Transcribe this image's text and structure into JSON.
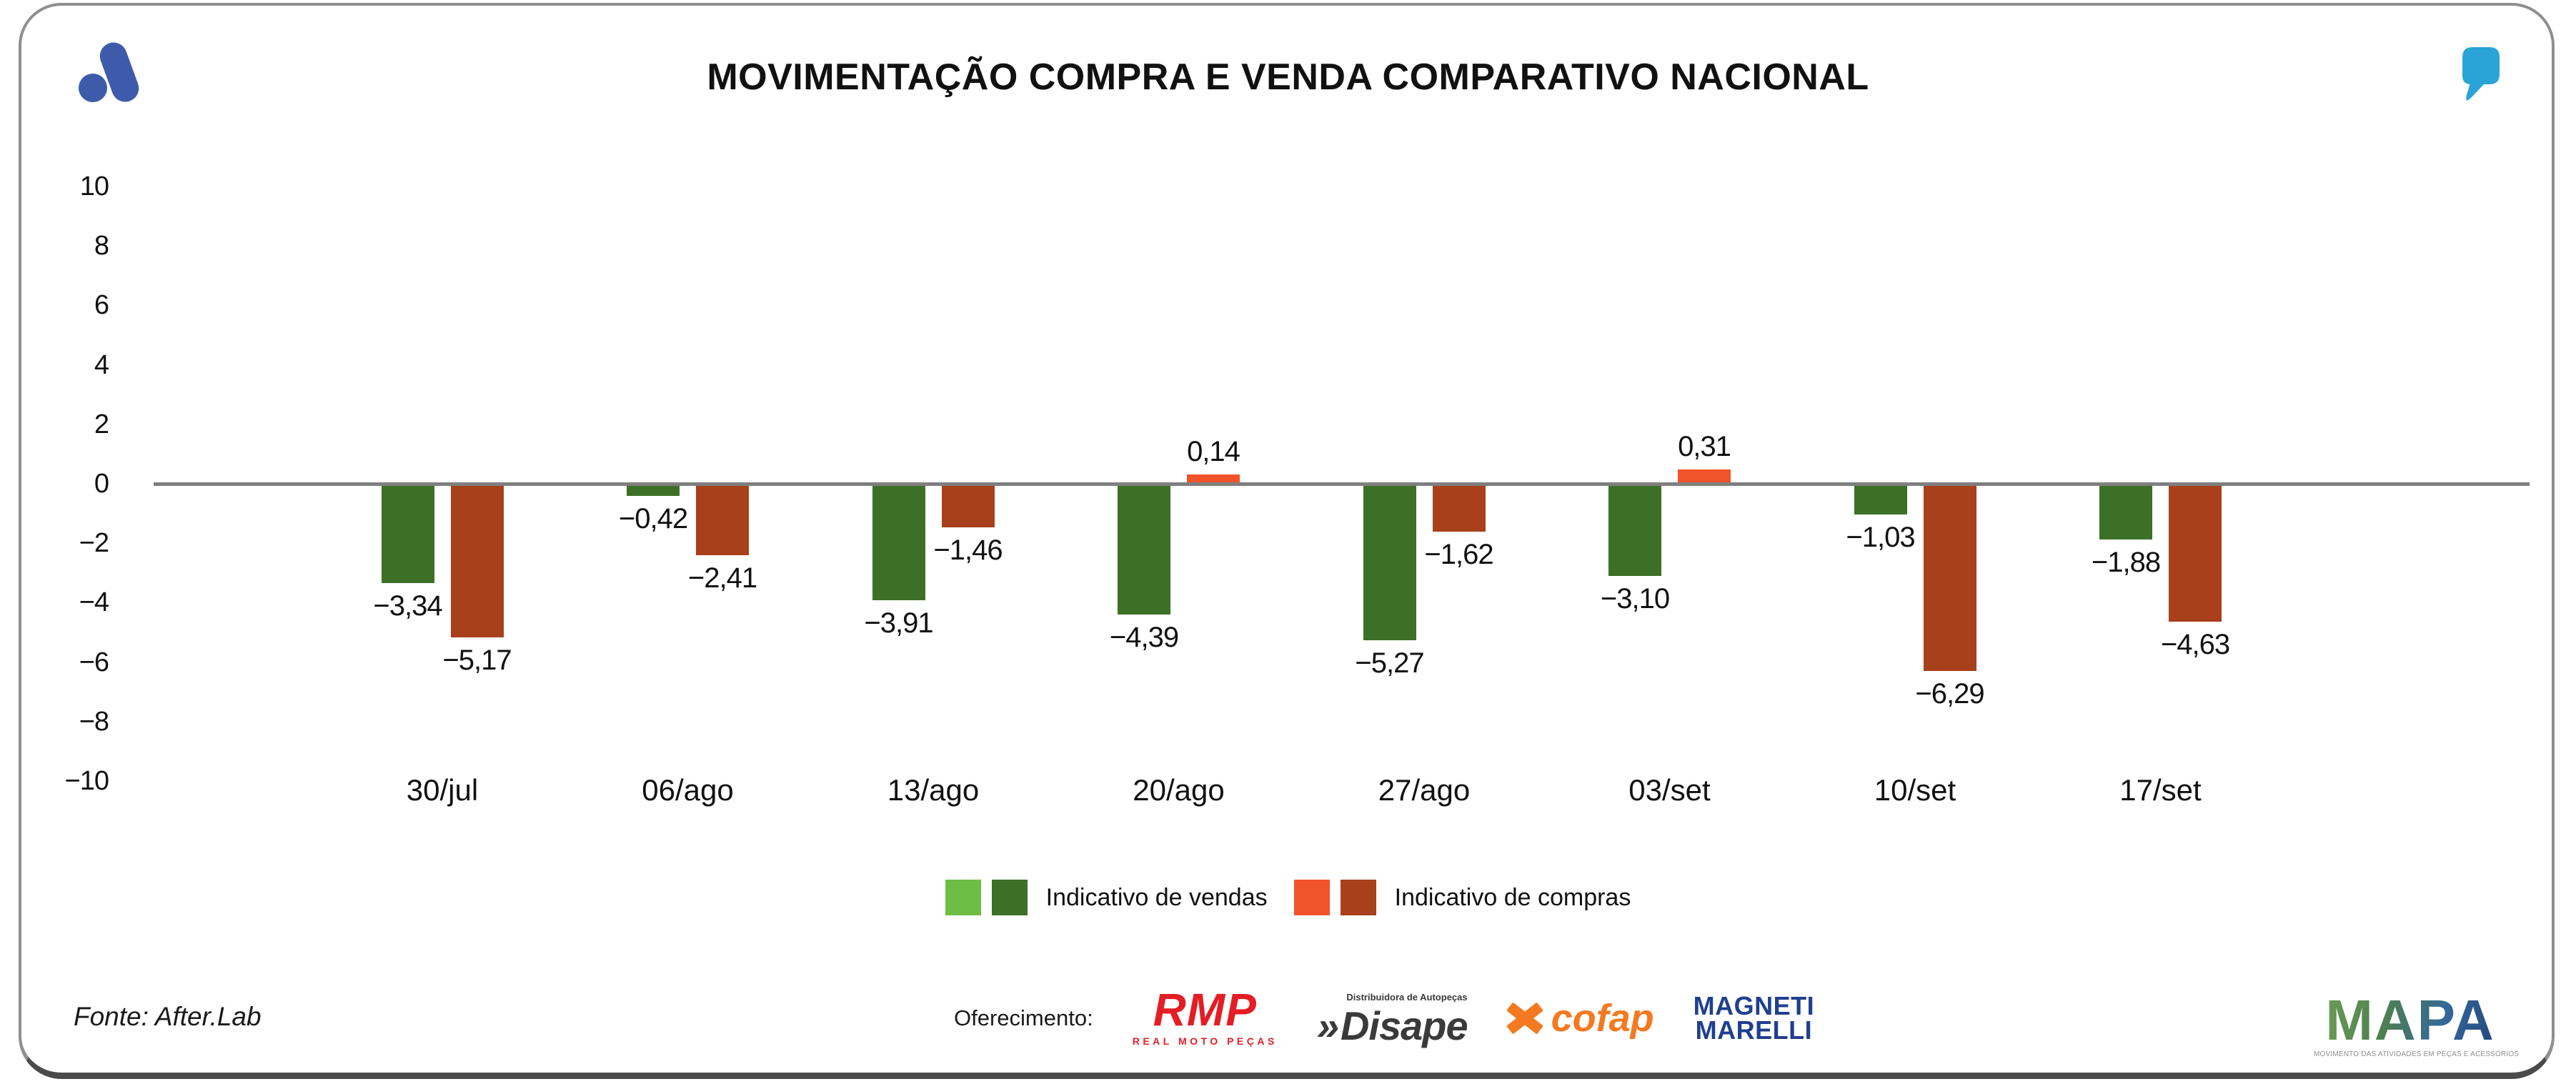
{
  "chart_data": {
    "type": "bar",
    "title": "MOVIMENTAÇÃO COMPRA E VENDA COMPARATIVO NACIONAL",
    "categories": [
      "30/jul",
      "06/ago",
      "13/ago",
      "20/ago",
      "27/ago",
      "03/set",
      "10/set",
      "17/set"
    ],
    "series": [
      {
        "name": "Indicativo de vendas",
        "values": [
          -3.34,
          -0.42,
          -3.91,
          -4.39,
          -5.27,
          -3.1,
          -1.03,
          -1.88
        ],
        "value_labels": [
          "−3,34",
          "−0,42",
          "−3,91",
          "−4,39",
          "−5,27",
          "−3,10",
          "−1,03",
          "−1,88"
        ],
        "color_positive": "#6CBE45",
        "color_negative": "#3C7026"
      },
      {
        "name": "Indicativo de compras",
        "values": [
          -5.17,
          -2.41,
          -1.46,
          0.14,
          -1.62,
          0.31,
          -6.29,
          -4.63
        ],
        "value_labels": [
          "−5,17",
          "−2,41",
          "−1,46",
          "0,14",
          "−1,62",
          "0,31",
          "−6,29",
          "−4,63"
        ],
        "color_positive": "#F1532B",
        "color_negative": "#A8401B"
      }
    ],
    "ylim": [
      -10,
      10
    ],
    "yticks": [
      10,
      8,
      6,
      4,
      2,
      0,
      -2,
      -4,
      -6,
      -8,
      -10
    ],
    "ytick_labels": [
      "10",
      "8",
      "6",
      "4",
      "2",
      "0",
      "−2",
      "−4",
      "−6",
      "−8",
      "−10"
    ],
    "grid": false,
    "legend_position": "bottom",
    "zero_line_color": "#7F7F7F"
  },
  "branding": {
    "afterlab_color": "#3D5BAA",
    "quote_color": "#2AA4D6"
  },
  "footer": {
    "fonte": "Fonte: After.Lab",
    "oferecimento_label": "Oferecimento:",
    "sponsors": {
      "rmp": {
        "name": "RMP",
        "sub": "REAL MOTO PEÇAS",
        "color": "#E31E24"
      },
      "disape": {
        "chevrons": "»",
        "name": "Disape",
        "sub": "Distribuidora de Autopeças",
        "color": "#3A3A3A"
      },
      "cofap": {
        "name": "cofap",
        "color": "#F47920"
      },
      "magneti": {
        "line1": "MAGNETI",
        "line2": "MARELLI",
        "color": "#1F3F8F"
      }
    },
    "mapa": {
      "name": "MAPA",
      "tagline": "MOVIMENTO DAS ATIVIDADES EM PEÇAS E ACESSÓRIOS",
      "gradient": [
        "#6B9C56",
        "#24487F"
      ],
      "tagline_color": "#8F8F8F"
    }
  }
}
